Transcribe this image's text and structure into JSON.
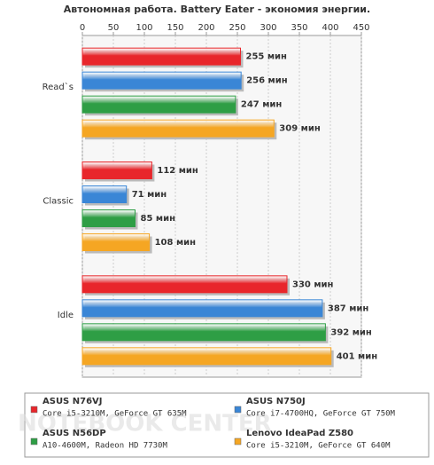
{
  "chart_data": {
    "type": "hbar",
    "title": "Автономная работа. Battery Eater - экономия энергии.",
    "categories": [
      "Read`s",
      "Classic",
      "Idle"
    ],
    "series": [
      {
        "name": "ASUS N76VJ",
        "subtitle": "Core i5-3210M, GeForce GT 635M",
        "color": "#e8262b",
        "values": [
          255,
          112,
          330
        ],
        "value_labels": [
          "255 мин",
          "112 мин",
          "330 мин"
        ]
      },
      {
        "name": "ASUS N750J",
        "subtitle": "Core i7-4700HQ, GeForce GT 750M",
        "color": "#3a86d6",
        "values": [
          256,
          71,
          387
        ],
        "value_labels": [
          "256 мин",
          "71 мин",
          "387 мин"
        ]
      },
      {
        "name": "ASUS N56DP",
        "subtitle": "A10-4600M, Radeon HD 7730M",
        "color": "#2e9e45",
        "values": [
          247,
          85,
          392
        ],
        "value_labels": [
          "247 мин",
          "85 мин",
          "392 мин"
        ]
      },
      {
        "name": "Lenovo IdeaPad Z580",
        "subtitle": "Core i5-3210M, GeForce GT 640M",
        "color": "#f5a623",
        "values": [
          309,
          108,
          401
        ],
        "value_labels": [
          "309 мин",
          "108 мин",
          "401 мин"
        ]
      }
    ],
    "xlim": [
      0,
      450
    ],
    "xticks": [
      0,
      50,
      100,
      150,
      200,
      250,
      300,
      350,
      400,
      450
    ],
    "grid": true,
    "watermark": "NOTEBOOK CENTER"
  }
}
